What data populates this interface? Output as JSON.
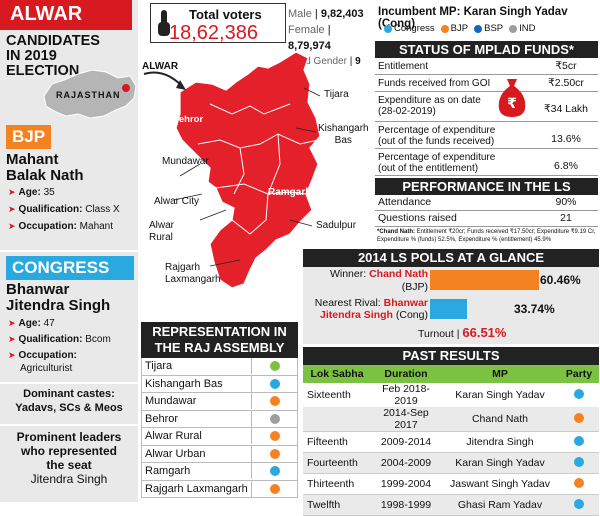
{
  "title": "ALWAR",
  "candidates_heading": [
    "CANDIDATES",
    "IN 2019",
    "ELECTION"
  ],
  "state_label": "RAJASTHAN",
  "bjp": {
    "party": "BJP",
    "name_line1": "Mahant",
    "name_line2": "Balak Nath",
    "age_label": "Age:",
    "age": "35",
    "qual_label": "Qualification:",
    "qual": "Class X",
    "occ_label": "Occupation:",
    "occ": "Mahant"
  },
  "congress": {
    "party": "CONGRESS",
    "name_line1": "Bhanwar",
    "name_line2": "Jitendra Singh",
    "age_label": "Age:",
    "age": "47",
    "qual_label": "Qualification:",
    "qual": "Bcom",
    "occ_label": "Occupation:",
    "occ": "Agriculturist"
  },
  "castes": {
    "label": "Dominant castes:",
    "value": "Yadavs, SCs & Meos"
  },
  "leaders": {
    "label_line1": "Prominent leaders",
    "label_line2": "who represented",
    "label_line3": "the seat",
    "value": "Jitendra Singh"
  },
  "voters": {
    "label": "Total voters",
    "value": "18,62,386"
  },
  "gender": {
    "male_label": "Male",
    "male": "9,82,403",
    "female_label": "Female",
    "female": "8,79,974",
    "third_label": "Third Gender",
    "third": "9"
  },
  "map_labels": {
    "alwar": "ALWAR",
    "tijara": "Tijara",
    "behror": "Behror",
    "kishangarh": "Kishangarh",
    "kishangarh2": "Bas",
    "mundawar": "Mundawar",
    "ramgarh": "Ramgarh",
    "alwar_city": "Alwar City",
    "alwar_rural1": "Alwar",
    "alwar_rural2": "Rural",
    "sadulpur": "Sadulpur",
    "rajgarh1": "Rajgarh",
    "rajgarh2": "Laxmangarh"
  },
  "assembly": {
    "heading1": "REPRESENTATION IN",
    "heading2": "THE RAJ ASSEMBLY",
    "rows": [
      {
        "name": "Tijara",
        "color": "#7cc242"
      },
      {
        "name": "Kishangarh Bas",
        "color": "#2aa8e0"
      },
      {
        "name": "Mundawar",
        "color": "#f58220"
      },
      {
        "name": "Behror",
        "color": "#9e9e9e"
      },
      {
        "name": "Alwar Rural",
        "color": "#f58220"
      },
      {
        "name": "Alwar Urban",
        "color": "#f58220"
      },
      {
        "name": "Ramgarh",
        "color": "#2aa8e0"
      },
      {
        "name": "Rajgarh Laxmangarh",
        "color": "#f58220"
      }
    ]
  },
  "incumbent": {
    "label": "Incumbent MP:",
    "value": "Karan Singh Yadav (Cong)"
  },
  "legend": [
    {
      "name": "Congress",
      "color": "#2aa8e0"
    },
    {
      "name": "BJP",
      "color": "#f58220"
    },
    {
      "name": "BSP",
      "color": "#1565c0"
    },
    {
      "name": "IND",
      "color": "#9e9e9e"
    }
  ],
  "mplad": {
    "heading": "STATUS OF MPLAD FUNDS*",
    "rows": [
      {
        "label": "Entitlement",
        "value": "₹5cr"
      },
      {
        "label": "Funds received from GOI",
        "value": "₹2.50cr"
      },
      {
        "label": "Expenditure as on date (28-02-2019)",
        "value": "₹34 Lakh"
      },
      {
        "label": "Percentage of expenditure (out of the funds received)",
        "value": "13.6%"
      },
      {
        "label": "Percentage of expenditure (out of the entitlement)",
        "value": "6.8%"
      }
    ]
  },
  "performance": {
    "heading": "PERFORMANCE IN THE LS",
    "rows": [
      {
        "label": "Attendance",
        "value": "90%"
      },
      {
        "label": "Questions raised",
        "value": "21"
      }
    ],
    "footnote_bold": "*Chand Nath:",
    "footnote": "Entitlement ₹20cr; Funds received ₹17.50cr; Expenditure ₹9.19 Cr, Expenditure % (funds) 52.5%, Expenditure % (entitlement) 45.9%"
  },
  "polls2014": {
    "heading": "2014 LS POLLS AT A GLANCE",
    "winner_label": "Winner:",
    "winner_name": "Chand Nath",
    "winner_party": "(BJP)",
    "winner_pct": "60.46%",
    "winner_share": 60.46,
    "rival_label": "Nearest Rival:",
    "rival_name1": "Bhanwar",
    "rival_name2": "Jitendra Singh",
    "rival_party": "(Cong)",
    "rival_pct": "33.74%",
    "rival_share": 33.74,
    "turnout_label": "Turnout |",
    "turnout": "66.51%"
  },
  "past": {
    "heading": "PAST RESULTS",
    "columns": [
      "Lok Sabha",
      "Duration",
      "MP",
      "Party"
    ],
    "rows": [
      {
        "ls": "Sixteenth",
        "dur": "Feb 2018-2019",
        "mp": "Karan Singh Yadav",
        "color": "#2aa8e0"
      },
      {
        "ls": "",
        "dur": "2014-Sep 2017",
        "mp": "Chand Nath",
        "color": "#f58220"
      },
      {
        "ls": "Fifteenth",
        "dur": "2009-2014",
        "mp": "Jitendra Singh",
        "color": "#2aa8e0"
      },
      {
        "ls": "Fourteenth",
        "dur": "2004-2009",
        "mp": "Karan Singh Yadav",
        "color": "#2aa8e0"
      },
      {
        "ls": "Thirteenth",
        "dur": "1999-2004",
        "mp": "Jaswant Singh Yadav",
        "color": "#f58220"
      },
      {
        "ls": "Twelfth",
        "dur": "1998-1999",
        "mp": "Ghasi Ram Yadav",
        "color": "#2aa8e0"
      }
    ]
  }
}
